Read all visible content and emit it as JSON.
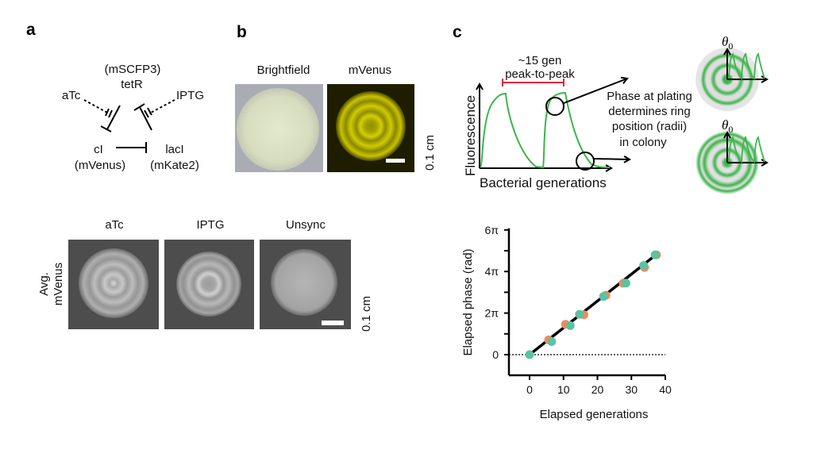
{
  "panels": {
    "a": "a",
    "b": "b",
    "c": "c"
  },
  "circuit": {
    "tetr_reporter": "(mSCFP3)",
    "tetr": "tetR",
    "atc": "aTc",
    "iptg": "IPTG",
    "ci": "cI",
    "ci_reporter": "(mVenus)",
    "laci": "lacI",
    "laci_reporter": "(mKate2)",
    "colors": {
      "tetr": "#3d4196",
      "ci": "#f5a94e",
      "laci": "#e0263a"
    }
  },
  "panel_b": {
    "brightfield_label": "Brightfield",
    "mvenus_label": "mVenus",
    "scale_label": "0.1 cm"
  },
  "panel_a_bottom": {
    "ylabel_line1": "Avg.",
    "ylabel_line2": "mVenus",
    "conditions": [
      "aTc",
      "IPTG",
      "Unsync"
    ],
    "scale_label": "0.1 cm"
  },
  "schematic": {
    "ylabel": "Fluorescence",
    "xlabel": "Bacterial generations",
    "period_line1": "~15 gen",
    "period_line2": "peak-to-peak",
    "note": [
      "Phase at plating",
      "determines ring",
      "position (radii)",
      "in colony"
    ],
    "theta_label": "θ",
    "theta_sub": "0"
  },
  "chart_data": {
    "type": "scatter",
    "xlabel": "Elapsed generations",
    "ylabel": "Elapsed phase (rad)",
    "xlim": [
      -5,
      40
    ],
    "ylim": [
      -1,
      6
    ],
    "y_units": "π rad",
    "x_ticks": [
      0,
      10,
      20,
      30,
      40
    ],
    "x_tick_labels": [
      "0",
      "10",
      "20",
      "30",
      "40"
    ],
    "y_ticks": [
      0,
      2,
      4,
      6
    ],
    "y_tick_labels": [
      "0",
      "2π",
      "4π",
      "6π"
    ],
    "y_minor_ticks": [
      1,
      3,
      5
    ],
    "zero_line": "dotted",
    "fit_line": {
      "x": [
        0,
        37.2
      ],
      "y": [
        0,
        4.8
      ]
    },
    "series": [
      {
        "name": "aTc",
        "color": "#f08a5d",
        "x": [
          5.6,
          10.6,
          16.0,
          22.5,
          27.6,
          33.9,
          37.4
        ],
        "y": [
          0.71,
          1.46,
          1.92,
          2.86,
          3.44,
          4.2,
          4.8
        ]
      },
      {
        "name": "IPTG",
        "color": "#5cc2a0",
        "x": [
          0,
          6.5,
          12.0,
          14.7,
          21.8,
          28.4,
          33.6,
          37.0
        ],
        "y": [
          0,
          0.63,
          1.4,
          1.94,
          2.8,
          3.44,
          4.29,
          4.8
        ]
      }
    ]
  }
}
